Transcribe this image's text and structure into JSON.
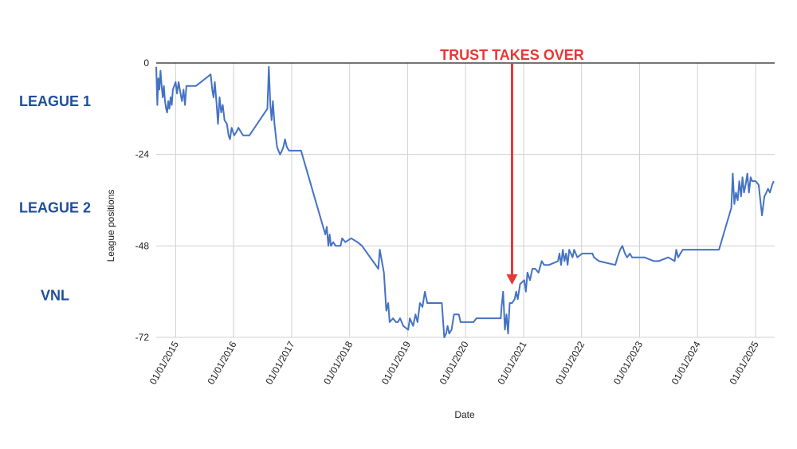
{
  "tiers": [
    {
      "label": "LEAGUE 1",
      "y": -10
    },
    {
      "label": "LEAGUE 2",
      "y": -38
    },
    {
      "label": "VNL",
      "y": -61
    }
  ],
  "annotation": {
    "text": "TRUST TAKES OVER",
    "date": "2020-10-20",
    "color": "#e53935"
  },
  "colors": {
    "line": "#4472c4",
    "grid": "#d0d0d0",
    "axis": "#222222",
    "tier_text": "#1f4e9c"
  },
  "chart_data": {
    "type": "line",
    "title": "",
    "xlabel": "Date",
    "ylabel": "League positions",
    "xlim": [
      "2014-09-01",
      "2025-05-01"
    ],
    "ylim": [
      -72,
      0
    ],
    "yticks": [
      0,
      -24,
      -48,
      -72
    ],
    "xticks": [
      "01/01/2015",
      "01/01/2016",
      "01/01/2017",
      "01/01/2018",
      "01/01/2019",
      "01/01/2020",
      "01/01/2021",
      "01/01/2022",
      "01/01/2023",
      "01/01/2024",
      "01/01/2025"
    ],
    "grid": true,
    "series": [
      {
        "name": "",
        "points": [
          [
            "2014-09-01",
            -1
          ],
          [
            "2014-09-08",
            -11
          ],
          [
            "2014-09-14",
            -4
          ],
          [
            "2014-09-21",
            -7
          ],
          [
            "2014-09-28",
            -2
          ],
          [
            "2014-10-05",
            -6
          ],
          [
            "2014-10-12",
            -9
          ],
          [
            "2014-10-19",
            -6
          ],
          [
            "2014-10-26",
            -10
          ],
          [
            "2014-11-02",
            -12
          ],
          [
            "2014-11-09",
            -13
          ],
          [
            "2014-11-16",
            -10
          ],
          [
            "2014-11-23",
            -12
          ],
          [
            "2014-12-01",
            -9
          ],
          [
            "2014-12-08",
            -11
          ],
          [
            "2014-12-15",
            -7
          ],
          [
            "2015-01-01",
            -5
          ],
          [
            "2015-01-10",
            -8
          ],
          [
            "2015-01-20",
            -5
          ],
          [
            "2015-02-01",
            -8
          ],
          [
            "2015-02-10",
            -10
          ],
          [
            "2015-02-20",
            -7
          ],
          [
            "2015-03-01",
            -11
          ],
          [
            "2015-03-10",
            -6
          ],
          [
            "2015-05-10",
            -6
          ],
          [
            "2015-08-10",
            -3
          ],
          [
            "2015-08-20",
            -7
          ],
          [
            "2015-08-28",
            -9
          ],
          [
            "2015-09-05",
            -5
          ],
          [
            "2015-09-15",
            -10
          ],
          [
            "2015-09-25",
            -16
          ],
          [
            "2015-10-05",
            -9
          ],
          [
            "2015-10-15",
            -13
          ],
          [
            "2015-10-25",
            -11
          ],
          [
            "2015-11-05",
            -15
          ],
          [
            "2015-11-20",
            -16
          ],
          [
            "2015-12-01",
            -19
          ],
          [
            "2015-12-10",
            -20
          ],
          [
            "2015-12-20",
            -17
          ],
          [
            "2016-01-05",
            -19
          ],
          [
            "2016-01-20",
            -18
          ],
          [
            "2016-02-01",
            -17
          ],
          [
            "2016-02-15",
            -18
          ],
          [
            "2016-03-01",
            -19
          ],
          [
            "2016-04-10",
            -19
          ],
          [
            "2016-08-01",
            -12
          ],
          [
            "2016-08-10",
            -1
          ],
          [
            "2016-08-20",
            -11
          ],
          [
            "2016-08-28",
            -15
          ],
          [
            "2016-09-05",
            -10
          ],
          [
            "2016-09-15",
            -16
          ],
          [
            "2016-10-01",
            -22
          ],
          [
            "2016-10-10",
            -23
          ],
          [
            "2016-10-20",
            -24
          ],
          [
            "2016-11-01",
            -23
          ],
          [
            "2016-11-10",
            -22
          ],
          [
            "2016-11-20",
            -20
          ],
          [
            "2016-12-01",
            -22
          ],
          [
            "2016-12-15",
            -23
          ],
          [
            "2017-01-15",
            -23
          ],
          [
            "2017-03-01",
            -23
          ],
          [
            "2017-08-01",
            -45
          ],
          [
            "2017-08-10",
            -43
          ],
          [
            "2017-08-20",
            -48
          ],
          [
            "2017-08-28",
            -45
          ],
          [
            "2017-09-05",
            -48
          ],
          [
            "2017-09-20",
            -47
          ],
          [
            "2017-10-05",
            -48
          ],
          [
            "2017-11-05",
            -48
          ],
          [
            "2017-11-15",
            -46
          ],
          [
            "2017-12-05",
            -47
          ],
          [
            "2018-01-10",
            -46
          ],
          [
            "2018-02-20",
            -47
          ],
          [
            "2018-03-20",
            -48
          ],
          [
            "2018-07-01",
            -54
          ],
          [
            "2018-07-10",
            -49
          ],
          [
            "2018-08-05",
            -55
          ],
          [
            "2018-08-20",
            -65
          ],
          [
            "2018-09-01",
            -63
          ],
          [
            "2018-09-10",
            -68
          ],
          [
            "2018-10-01",
            -67
          ],
          [
            "2018-10-20",
            -68
          ],
          [
            "2018-11-01",
            -68
          ],
          [
            "2018-11-15",
            -67
          ],
          [
            "2018-12-05",
            -69
          ],
          [
            "2019-01-05",
            -70
          ],
          [
            "2019-01-15",
            -67
          ],
          [
            "2019-02-05",
            -69
          ],
          [
            "2019-02-20",
            -66
          ],
          [
            "2019-03-05",
            -68
          ],
          [
            "2019-03-20",
            -63
          ],
          [
            "2019-04-05",
            -64
          ],
          [
            "2019-04-20",
            -60
          ],
          [
            "2019-05-05",
            -63
          ],
          [
            "2019-08-05",
            -63
          ],
          [
            "2019-08-15",
            -69
          ],
          [
            "2019-08-20",
            -72
          ],
          [
            "2019-09-01",
            -71
          ],
          [
            "2019-09-10",
            -69
          ],
          [
            "2019-09-20",
            -71
          ],
          [
            "2019-10-05",
            -70
          ],
          [
            "2019-10-20",
            -66
          ],
          [
            "2019-11-20",
            -66
          ],
          [
            "2019-12-01",
            -68
          ],
          [
            "2020-02-20",
            -68
          ],
          [
            "2020-03-10",
            -67
          ],
          [
            "2020-08-10",
            -67
          ],
          [
            "2020-08-15",
            -64
          ],
          [
            "2020-08-25",
            -60
          ],
          [
            "2020-09-05",
            -70
          ],
          [
            "2020-09-15",
            -66
          ],
          [
            "2020-09-25",
            -71
          ],
          [
            "2020-10-05",
            -63
          ],
          [
            "2020-10-20",
            -63
          ],
          [
            "2020-11-05",
            -62
          ],
          [
            "2020-11-15",
            -60
          ],
          [
            "2020-11-25",
            -62
          ],
          [
            "2020-12-10",
            -58
          ],
          [
            "2021-01-05",
            -57
          ],
          [
            "2021-01-15",
            -60
          ],
          [
            "2021-01-25",
            -55
          ],
          [
            "2021-02-10",
            -57
          ],
          [
            "2021-02-25",
            -54
          ],
          [
            "2021-03-15",
            -54
          ],
          [
            "2021-04-05",
            -55
          ],
          [
            "2021-04-25",
            -52
          ],
          [
            "2021-05-10",
            -53
          ],
          [
            "2021-06-10",
            -53
          ],
          [
            "2021-08-05",
            -52
          ],
          [
            "2021-08-15",
            -50
          ],
          [
            "2021-08-25",
            -53
          ],
          [
            "2021-09-05",
            -49
          ],
          [
            "2021-09-15",
            -52
          ],
          [
            "2021-09-25",
            -50
          ],
          [
            "2021-10-05",
            -53
          ],
          [
            "2021-10-15",
            -49
          ],
          [
            "2021-11-05",
            -51
          ],
          [
            "2021-11-15",
            -49
          ],
          [
            "2021-12-05",
            -51
          ],
          [
            "2022-01-05",
            -50
          ],
          [
            "2022-02-01",
            -50
          ],
          [
            "2022-03-10",
            -50
          ],
          [
            "2022-03-20",
            -51
          ],
          [
            "2022-04-20",
            -52
          ],
          [
            "2022-08-01",
            -53
          ],
          [
            "2022-08-15",
            -51
          ],
          [
            "2022-09-01",
            -49
          ],
          [
            "2022-09-15",
            -48
          ],
          [
            "2022-10-01",
            -50
          ],
          [
            "2022-10-15",
            -51
          ],
          [
            "2022-11-01",
            -50
          ],
          [
            "2022-11-15",
            -51
          ],
          [
            "2022-12-01",
            -51
          ],
          [
            "2023-02-01",
            -51
          ],
          [
            "2023-04-01",
            -52
          ],
          [
            "2023-05-01",
            -52
          ],
          [
            "2023-07-01",
            -51
          ],
          [
            "2023-08-10",
            -52
          ],
          [
            "2023-08-20",
            -49
          ],
          [
            "2023-09-01",
            -51
          ],
          [
            "2023-09-15",
            -50
          ],
          [
            "2023-10-01",
            -49
          ],
          [
            "2023-12-15",
            -49
          ],
          [
            "2024-05-15",
            -49
          ],
          [
            "2024-08-01",
            -38
          ],
          [
            "2024-08-10",
            -29
          ],
          [
            "2024-08-20",
            -37
          ],
          [
            "2024-08-30",
            -34
          ],
          [
            "2024-09-10",
            -36
          ],
          [
            "2024-09-20",
            -31
          ],
          [
            "2024-10-01",
            -35
          ],
          [
            "2024-10-10",
            -30
          ],
          [
            "2024-10-20",
            -34
          ],
          [
            "2024-10-30",
            -32
          ],
          [
            "2024-11-10",
            -29
          ],
          [
            "2024-11-20",
            -34
          ],
          [
            "2024-12-01",
            -30
          ],
          [
            "2024-12-10",
            -31
          ],
          [
            "2025-01-01",
            -31
          ],
          [
            "2025-01-20",
            -32
          ],
          [
            "2025-02-10",
            -40
          ],
          [
            "2025-02-25",
            -35
          ],
          [
            "2025-03-10",
            -34
          ],
          [
            "2025-03-20",
            -33
          ],
          [
            "2025-04-01",
            -34
          ],
          [
            "2025-04-15",
            -32
          ],
          [
            "2025-04-25",
            -31
          ]
        ]
      }
    ]
  }
}
